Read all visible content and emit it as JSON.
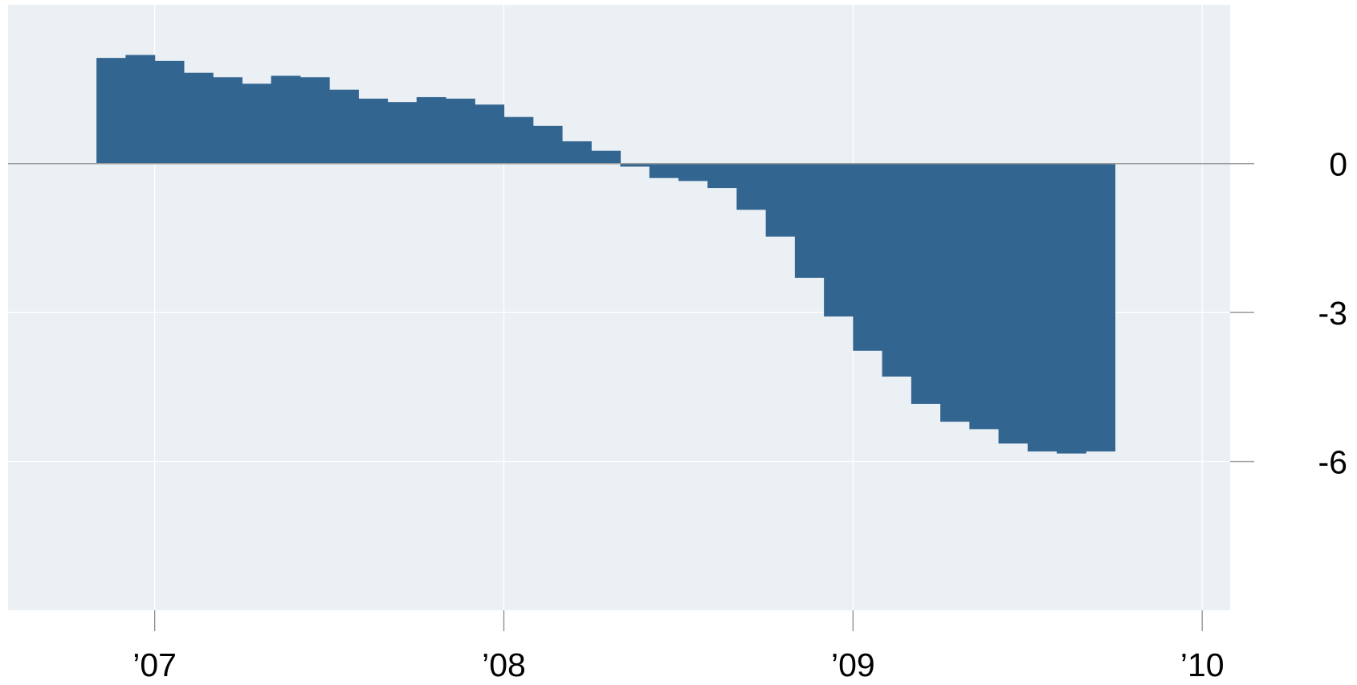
{
  "chart_data": {
    "type": "bar",
    "style": "stepped-area",
    "colors": {
      "bar": "#336591",
      "plot_background": "#EBF0F4",
      "grid": "#FFFFFF",
      "zero_line": "#9A9A9A"
    },
    "y_axis": {
      "position": "right",
      "range": [
        -9.0,
        3.2
      ],
      "ticks": [
        0,
        -3,
        -6
      ],
      "tick_labels": [
        "0",
        "-3",
        "-6"
      ]
    },
    "x_axis": {
      "range": [
        2006.58,
        2010.08
      ],
      "ticks": [
        2007,
        2008,
        2009,
        2010
      ],
      "tick_labels": [
        "’07",
        "’08",
        "’09",
        "’10"
      ]
    },
    "grid": true,
    "series": [
      {
        "period_width_months": 1,
        "x": [
          "2006-11",
          "2006-12",
          "2007-01",
          "2007-02",
          "2007-03",
          "2007-04",
          "2007-05",
          "2007-06",
          "2007-07",
          "2007-08",
          "2007-09",
          "2007-10",
          "2007-11",
          "2007-12",
          "2008-01",
          "2008-02",
          "2008-03",
          "2008-04",
          "2008-05",
          "2008-06",
          "2008-07",
          "2008-08",
          "2008-09",
          "2008-10",
          "2008-11",
          "2008-12",
          "2009-01",
          "2009-02",
          "2009-03",
          "2009-04",
          "2009-05",
          "2009-06",
          "2009-07",
          "2009-08",
          "2009-09"
        ],
        "values": [
          2.13,
          2.19,
          2.07,
          1.83,
          1.74,
          1.61,
          1.77,
          1.74,
          1.49,
          1.31,
          1.24,
          1.34,
          1.31,
          1.19,
          0.94,
          0.76,
          0.45,
          0.26,
          -0.06,
          -0.29,
          -0.35,
          -0.49,
          -0.93,
          -1.47,
          -2.3,
          -3.08,
          -3.77,
          -4.29,
          -4.84,
          -5.2,
          -5.35,
          -5.64,
          -5.8,
          -5.84,
          -5.8
        ]
      }
    ]
  }
}
